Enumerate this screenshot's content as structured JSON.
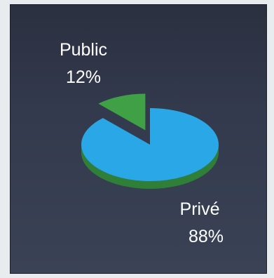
{
  "chart_data": {
    "type": "pie",
    "title": "",
    "slices": [
      {
        "label": "Public",
        "value": 12,
        "value_label": "12%"
      },
      {
        "label": "Privé",
        "value": 88,
        "value_label": "88%"
      }
    ],
    "style": {
      "exploded_slice": "Public",
      "three_d": true
    }
  },
  "colors": {
    "public_top": "#3fa046",
    "public_side": "#2f7f39",
    "prive_top": "#2aa7e6",
    "prive_side": "#2f7f39",
    "background_dark": "#2b3040",
    "background_light": "#3a4255",
    "text": "#ffffff"
  }
}
